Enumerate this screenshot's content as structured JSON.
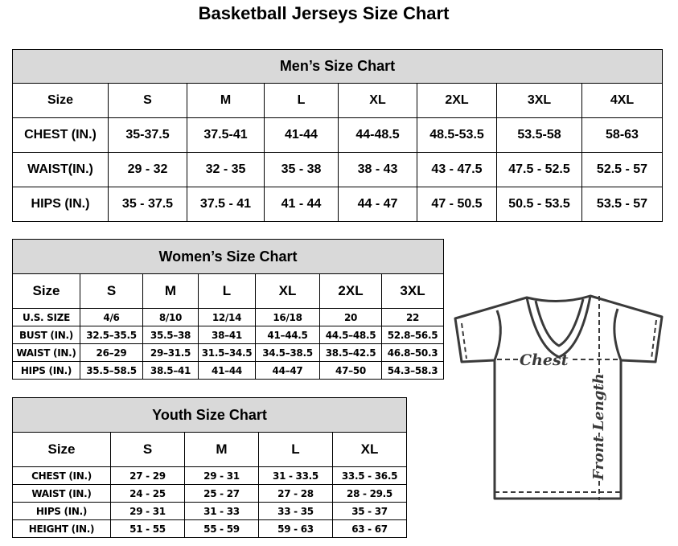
{
  "title": "Basketball Jerseys Size Chart",
  "men": {
    "caption": "Men’s Size Chart",
    "header": [
      "Size",
      "S",
      "M",
      "L",
      "XL",
      "2XL",
      "3XL",
      "4XL"
    ],
    "rows": [
      [
        "CHEST (IN.)",
        "35-37.5",
        "37.5-41",
        "41-44",
        "44-48.5",
        "48.5-53.5",
        "53.5-58",
        "58-63"
      ],
      [
        "WAIST(IN.)",
        "29 - 32",
        "32 - 35",
        "35 - 38",
        "38 - 43",
        "43 - 47.5",
        "47.5 - 52.5",
        "52.5 - 57"
      ],
      [
        "HIPS (IN.)",
        "35 - 37.5",
        "37.5 - 41",
        "41 - 44",
        "44 - 47",
        "47 - 50.5",
        "50.5 - 53.5",
        "53.5 - 57"
      ]
    ]
  },
  "women": {
    "caption": "Women’s Size Chart",
    "header": [
      "Size",
      "S",
      "M",
      "L",
      "XL",
      "2XL",
      "3XL"
    ],
    "rows": [
      [
        "U.S. SIZE",
        "4/6",
        "8/10",
        "12/14",
        "16/18",
        "20",
        "22"
      ],
      [
        "BUST (IN.)",
        "32.5–35.5",
        "35.5–38",
        "38–41",
        "41–44.5",
        "44.5–48.5",
        "52.8–56.5"
      ],
      [
        "WAIST (IN.)",
        "26–29",
        "29–31.5",
        "31.5–34.5",
        "34.5–38.5",
        "38.5–42.5",
        "46.8–50.3"
      ],
      [
        "HIPS (IN.)",
        "35.5–58.5",
        "38.5–41",
        "41–44",
        "44–47",
        "47–50",
        "54.3–58.3"
      ]
    ]
  },
  "youth": {
    "caption": "Youth Size Chart",
    "header": [
      "Size",
      "S",
      "M",
      "L",
      "XL"
    ],
    "rows": [
      [
        "CHEST (IN.)",
        "27 - 29",
        "29 - 31",
        "31 - 33.5",
        "33.5 - 36.5"
      ],
      [
        "WAIST (IN.)",
        "24 - 25",
        "25 - 27",
        "27 - 28",
        "28 - 29.5"
      ],
      [
        "HIPS (IN.)",
        "29 - 31",
        "31 - 33",
        "33 - 35",
        "35 - 37"
      ],
      [
        "HEIGHT (IN.)",
        "51 - 55",
        "55 - 59",
        "59 - 63",
        "63 - 67"
      ]
    ]
  },
  "diagram": {
    "chest_label": "Chest",
    "length_label": "Front Length",
    "icon": "t-shirt-icon"
  }
}
